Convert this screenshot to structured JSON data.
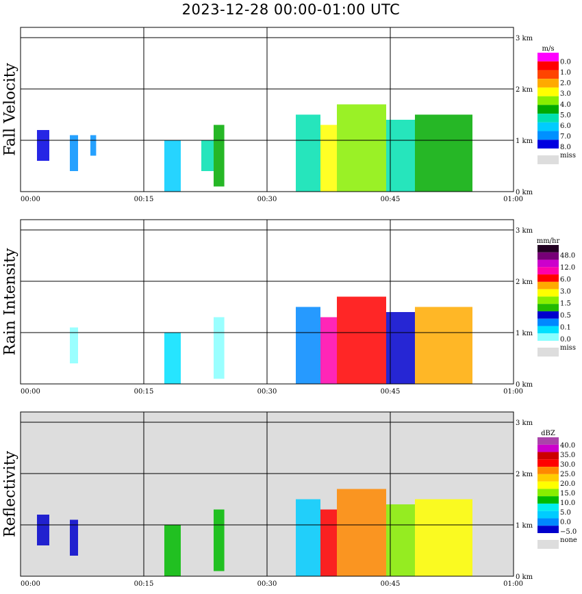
{
  "title": "2023-12-28   00:00-01:00 UTC",
  "chart_data": [
    {
      "type": "heatmap",
      "panel_label": "Fall Velocity",
      "x_ticks": [
        "00:00",
        "00:15",
        "00:30",
        "00:45",
        "01:00"
      ],
      "y_ticks": [
        "0 km",
        "1 km",
        "2 km",
        "3 km"
      ],
      "xlim_minutes": [
        0,
        60
      ],
      "ylim_km": [
        0,
        3.2
      ],
      "grid": true,
      "background": "#ffffff",
      "colorbar": {
        "unit": "m/s",
        "colors": [
          "#0000e0",
          "#0090ff",
          "#00ccff",
          "#00e0b0",
          "#00aa00",
          "#88ee00",
          "#ffff00",
          "#ffaa00",
          "#ff4400",
          "#ff0000",
          "#ff00ff"
        ],
        "labels": [
          "0.0",
          "1.0",
          "2.0",
          "3.0",
          "4.0",
          "5.0",
          "6.0",
          "7.0",
          "8.0"
        ],
        "missing_label": "miss",
        "missing_color": "#dddddd"
      },
      "echoes": [
        {
          "t0": 2.0,
          "t1": 3.5,
          "z0": 0.6,
          "z1": 1.2,
          "level": 0
        },
        {
          "t0": 6.0,
          "t1": 7.0,
          "z0": 0.4,
          "z1": 1.1,
          "level": 1
        },
        {
          "t0": 8.5,
          "t1": 9.2,
          "z0": 0.7,
          "z1": 1.1,
          "level": 1
        },
        {
          "t0": 17.5,
          "t1": 19.5,
          "z0": 0.0,
          "z1": 1.0,
          "level": 2
        },
        {
          "t0": 22.0,
          "t1": 23.5,
          "z0": 0.4,
          "z1": 1.0,
          "level": 3
        },
        {
          "t0": 23.5,
          "t1": 24.8,
          "z0": 0.1,
          "z1": 1.3,
          "level": 4
        },
        {
          "t0": 33.5,
          "t1": 36.5,
          "z0": 0.0,
          "z1": 1.5,
          "level": 3
        },
        {
          "t0": 36.5,
          "t1": 38.5,
          "z0": 0.0,
          "z1": 1.3,
          "level": 6
        },
        {
          "t0": 38.5,
          "t1": 44.5,
          "z0": 0.0,
          "z1": 1.7,
          "level": 5
        },
        {
          "t0": 44.5,
          "t1": 48.0,
          "z0": 0.0,
          "z1": 1.4,
          "level": 3
        },
        {
          "t0": 48.0,
          "t1": 55.0,
          "z0": 0.0,
          "z1": 1.5,
          "level": 4
        }
      ]
    },
    {
      "type": "heatmap",
      "panel_label": "Rain Intensity",
      "x_ticks": [
        "00:00",
        "00:15",
        "00:30",
        "00:45",
        "01:00"
      ],
      "y_ticks": [
        "0 km",
        "1 km",
        "2 km",
        "3 km"
      ],
      "xlim_minutes": [
        0,
        60
      ],
      "ylim_km": [
        0,
        3.2
      ],
      "grid": true,
      "background": "#ffffff",
      "colorbar": {
        "unit": "mm/hr",
        "colors": [
          "#88ffff",
          "#00e0ff",
          "#0088ff",
          "#0000cc",
          "#22bb00",
          "#88ee00",
          "#ffff00",
          "#ffaa00",
          "#ff0000",
          "#ff00aa",
          "#cc00cc",
          "#770077",
          "#220022"
        ],
        "labels": [
          "48.0",
          "12.0",
          "6.0",
          "3.0",
          "1.5",
          "0.5",
          "0.1",
          "0.0"
        ],
        "missing_label": "miss",
        "missing_color": "#dddddd"
      },
      "echoes": [
        {
          "t0": 6.0,
          "t1": 7.0,
          "z0": 0.4,
          "z1": 1.1,
          "level": 0
        },
        {
          "t0": 17.5,
          "t1": 19.5,
          "z0": 0.0,
          "z1": 1.0,
          "level": 1
        },
        {
          "t0": 23.5,
          "t1": 24.8,
          "z0": 0.1,
          "z1": 1.3,
          "level": 0
        },
        {
          "t0": 33.5,
          "t1": 36.5,
          "z0": 0.0,
          "z1": 1.5,
          "level": 2
        },
        {
          "t0": 36.5,
          "t1": 38.5,
          "z0": 0.0,
          "z1": 1.3,
          "level": 9
        },
        {
          "t0": 38.5,
          "t1": 44.5,
          "z0": 0.0,
          "z1": 1.7,
          "level": 8
        },
        {
          "t0": 44.5,
          "t1": 48.0,
          "z0": 0.0,
          "z1": 1.4,
          "level": 3
        },
        {
          "t0": 48.0,
          "t1": 55.0,
          "z0": 0.0,
          "z1": 1.5,
          "level": 7
        }
      ]
    },
    {
      "type": "heatmap",
      "panel_label": "Reflectivity",
      "x_ticks": [
        "00:00",
        "00:15",
        "00:30",
        "00:45",
        "01:00"
      ],
      "y_ticks": [
        "0 km",
        "1 km",
        "2 km",
        "3 km"
      ],
      "xlim_minutes": [
        0,
        60
      ],
      "ylim_km": [
        0,
        3.2
      ],
      "grid": true,
      "background": "#dddddd",
      "colorbar": {
        "unit": "dBZ",
        "colors": [
          "#0000cc",
          "#0088ff",
          "#00ccff",
          "#00eeee",
          "#00bb00",
          "#88ee00",
          "#ffff00",
          "#ffcc00",
          "#ff8800",
          "#ff0000",
          "#cc0000",
          "#cc00cc",
          "#aa44aa"
        ],
        "labels": [
          "40.0",
          "35.0",
          "30.0",
          "25.0",
          "20.0",
          "15.0",
          "10.0",
          "5.0",
          "0.0",
          "−5.0"
        ],
        "missing_label": "none",
        "missing_color": "#dddddd"
      },
      "echoes": [
        {
          "t0": 2.0,
          "t1": 3.5,
          "z0": 0.6,
          "z1": 1.2,
          "level": 0
        },
        {
          "t0": 6.0,
          "t1": 7.0,
          "z0": 0.4,
          "z1": 1.1,
          "level": 0
        },
        {
          "t0": 17.5,
          "t1": 19.5,
          "z0": 0.0,
          "z1": 1.0,
          "level": 4
        },
        {
          "t0": 23.5,
          "t1": 24.8,
          "z0": 0.1,
          "z1": 1.3,
          "level": 4
        },
        {
          "t0": 33.5,
          "t1": 36.5,
          "z0": 0.0,
          "z1": 1.5,
          "level": 2
        },
        {
          "t0": 36.5,
          "t1": 38.5,
          "z0": 0.0,
          "z1": 1.3,
          "level": 9
        },
        {
          "t0": 38.5,
          "t1": 44.5,
          "z0": 0.0,
          "z1": 1.7,
          "level": 8
        },
        {
          "t0": 44.5,
          "t1": 48.0,
          "z0": 0.0,
          "z1": 1.4,
          "level": 5
        },
        {
          "t0": 48.0,
          "t1": 55.0,
          "z0": 0.0,
          "z1": 1.5,
          "level": 6
        }
      ]
    }
  ]
}
